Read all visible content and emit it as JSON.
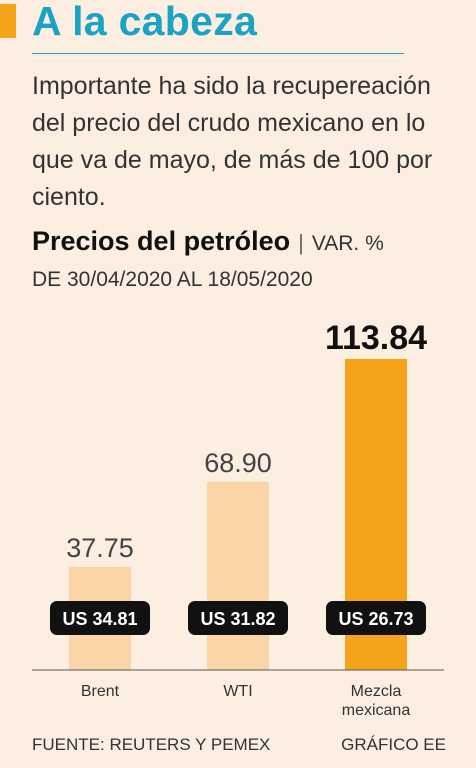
{
  "header": {
    "title": "A la cabeza",
    "intro": "Importante ha sido la recupereación del precio del crudo mexicano en lo que va de mayo, de más de 100 por ciento."
  },
  "chart_data": {
    "type": "bar",
    "title": "Precios del petróleo",
    "unit": "VAR. %",
    "subtitle": "DE 30/04/2020 AL 18/05/2020",
    "categories": [
      "Brent",
      "WTI",
      "Mezcla mexicana"
    ],
    "value_labels": [
      "37.75",
      "68.90",
      "113.84"
    ],
    "values": [
      37.75,
      68.9,
      113.84
    ],
    "price_labels": [
      "US 34.81",
      "US 31.82",
      "US 26.73"
    ],
    "prices": [
      34.81,
      31.82,
      26.73
    ],
    "highlight_index": 2,
    "ylim": [
      0,
      113.84
    ],
    "colors": {
      "bar": "#fbd5a8",
      "highlight": "#f5a31a",
      "badge": "#111111",
      "axis": "#555555"
    }
  },
  "footer": {
    "source": "FUENTE: REUTERS Y PEMEX",
    "credit": "GRÁFICO EE"
  }
}
